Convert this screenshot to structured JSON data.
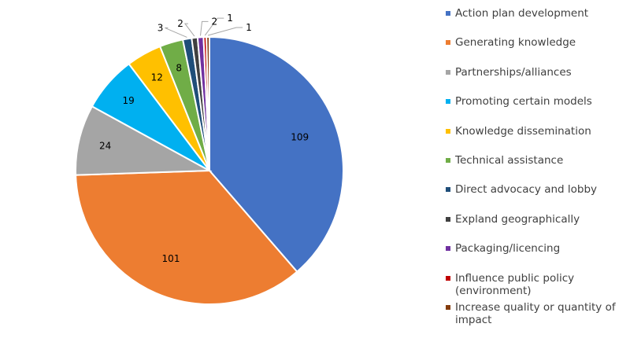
{
  "chart_data": {
    "type": "pie",
    "title": "",
    "categories": [
      "Action plan development",
      "Generating knowledge",
      "Partnerships/alliances",
      "Promoting certain models",
      "Knowledge dissemination",
      "Technical assistance",
      "Direct advocacy and lobby",
      "Expland geographically",
      "Packaging/licencing",
      "Influence public policy (environment)",
      "Increase quality or quantity of impact"
    ],
    "values": [
      109,
      101,
      24,
      19,
      12,
      8,
      3,
      2,
      2,
      1,
      1
    ],
    "data_labels": [
      "109",
      "101",
      "24",
      "19",
      "12",
      "8",
      "3",
      "2",
      "2",
      "1",
      "1"
    ],
    "colors": [
      "#4472C4",
      "#ED7D31",
      "#A5A5A5",
      "#00B0F0",
      "#FFC000",
      "#70AD47",
      "#1F4E79",
      "#404040",
      "#7030A0",
      "#C00000",
      "#843C0C"
    ],
    "legend_position": "right",
    "start_angle": "top",
    "direction": "clockwise"
  }
}
